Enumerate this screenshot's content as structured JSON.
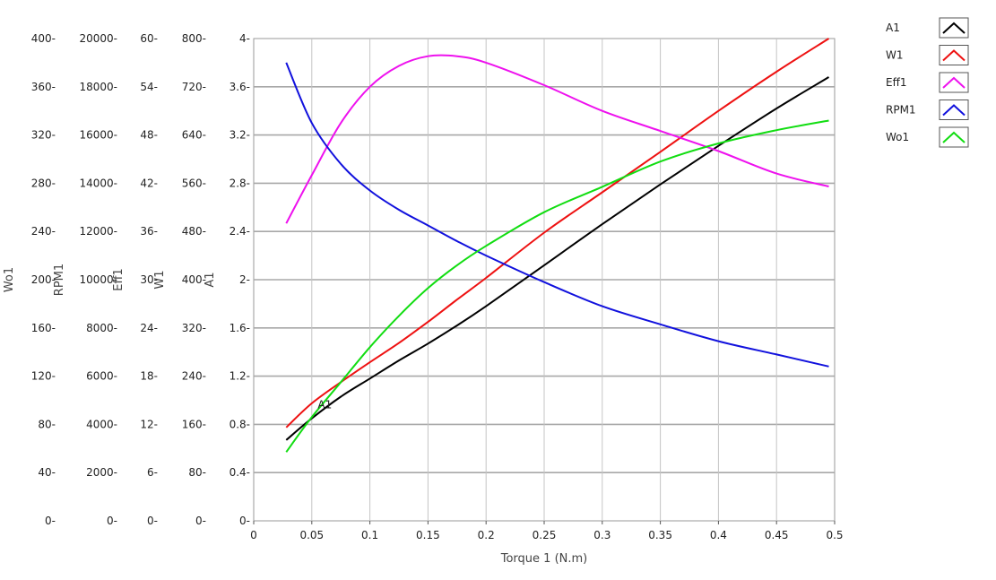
{
  "chart_data": {
    "type": "line",
    "xlabel": "Torque 1 (N.m)",
    "xlim": [
      0,
      0.5
    ],
    "xticks": [
      "0",
      "0.05",
      "0.1",
      "0.15",
      "0.2",
      "0.25",
      "0.3",
      "0.35",
      "0.4",
      "0.45",
      "0.5"
    ],
    "grid": true,
    "legend_position": "top-right",
    "annotation": {
      "text": "A1",
      "x": 0.052,
      "y": 0.86,
      "series": "A1"
    },
    "y_axes": [
      {
        "key": "Wo1",
        "label": "Wo1",
        "min": 0,
        "max": 400,
        "ticks": [
          "0-",
          "40-",
          "80-",
          "120-",
          "160-",
          "200-",
          "240-",
          "280-",
          "320-",
          "360-",
          "400-"
        ]
      },
      {
        "key": "RPM1",
        "label": "RPM1",
        "min": 0,
        "max": 20000,
        "ticks": [
          "0-",
          "2000-",
          "4000-",
          "6000-",
          "8000-",
          "10000-",
          "12000-",
          "14000-",
          "16000-",
          "18000-",
          "20000-"
        ]
      },
      {
        "key": "Eff1",
        "label": "Eff1",
        "min": 0,
        "max": 60,
        "ticks": [
          "0-",
          "6-",
          "12-",
          "18-",
          "24-",
          "30-",
          "36-",
          "42-",
          "48-",
          "54-",
          "60-"
        ]
      },
      {
        "key": "W1",
        "label": "W1",
        "min": 0,
        "max": 800,
        "ticks": [
          "0-",
          "80-",
          "160-",
          "240-",
          "320-",
          "400-",
          "480-",
          "560-",
          "640-",
          "720-",
          "800-"
        ]
      },
      {
        "key": "A1",
        "label": "A1",
        "min": 0,
        "max": 4,
        "ticks": [
          "0-",
          "0.4-",
          "0.8-",
          "1.2-",
          "1.6-",
          "2-",
          "2.4-",
          "2.8-",
          "3.2-",
          "3.6-",
          "4-"
        ]
      }
    ],
    "x": [
      0.028,
      0.05,
      0.075,
      0.1,
      0.125,
      0.15,
      0.175,
      0.2,
      0.25,
      0.3,
      0.35,
      0.4,
      0.45,
      0.495
    ],
    "series": [
      {
        "name": "A1",
        "axis": "A1",
        "color": "#000000",
        "values": [
          0.67,
          0.85,
          1.03,
          1.18,
          1.33,
          1.47,
          1.62,
          1.78,
          2.12,
          2.46,
          2.79,
          3.11,
          3.42,
          3.68
        ]
      },
      {
        "name": "W1",
        "axis": "W1",
        "color": "#ee1111",
        "values": [
          155,
          195,
          230,
          263,
          295,
          330,
          367,
          403,
          478,
          545,
          612,
          680,
          745,
          800
        ]
      },
      {
        "name": "Eff1",
        "axis": "Eff1",
        "color": "#ee11ee",
        "values": [
          37,
          43,
          49.5,
          54,
          56.6,
          57.8,
          57.8,
          57,
          54.2,
          51,
          48.5,
          46,
          43.2,
          41.6
        ]
      },
      {
        "name": "RPM1",
        "axis": "RPM1",
        "color": "#1111dd",
        "values": [
          19000,
          16500,
          14800,
          13700,
          12900,
          12250,
          11600,
          11000,
          9900,
          8900,
          8150,
          7450,
          6900,
          6400
        ]
      },
      {
        "name": "Wo1",
        "axis": "Wo1",
        "color": "#11dd11",
        "values": [
          57,
          86,
          115,
          144,
          170,
          193,
          212,
          228,
          256,
          277,
          298,
          313,
          324,
          332
        ]
      }
    ]
  }
}
